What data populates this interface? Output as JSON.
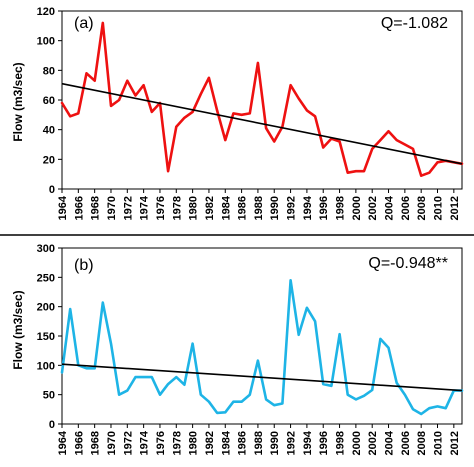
{
  "chart_data": [
    {
      "type": "line",
      "panel_label": "(a)",
      "annotation": "Q=-1.082",
      "ylabel": "Flow (m3/sec)",
      "xlabel": "",
      "ylim": [
        0,
        120
      ],
      "yticks": [
        0,
        20,
        40,
        60,
        80,
        100,
        120
      ],
      "xlim": [
        1964,
        2013
      ],
      "xticks": [
        1964,
        1966,
        1968,
        1970,
        1972,
        1974,
        1976,
        1978,
        1980,
        1982,
        1984,
        1986,
        1988,
        1990,
        1992,
        1994,
        1996,
        1998,
        2000,
        2002,
        2004,
        2006,
        2008,
        2010,
        2012
      ],
      "grid": false,
      "series": [
        {
          "color": "#ee1111",
          "x": [
            1964,
            1965,
            1966,
            1967,
            1968,
            1969,
            1970,
            1971,
            1972,
            1973,
            1974,
            1975,
            1976,
            1977,
            1978,
            1979,
            1980,
            1981,
            1982,
            1983,
            1984,
            1985,
            1986,
            1987,
            1988,
            1989,
            1990,
            1991,
            1992,
            1993,
            1994,
            1995,
            1996,
            1997,
            1998,
            1999,
            2000,
            2001,
            2002,
            2003,
            2004,
            2005,
            2006,
            2007,
            2008,
            2009,
            2010,
            2011,
            2012,
            2013
          ],
          "y": [
            58,
            49,
            51,
            78,
            73,
            112,
            56,
            60,
            73,
            63,
            70,
            52,
            58,
            12,
            42,
            48,
            52,
            64,
            75,
            53,
            33,
            51,
            50,
            51,
            85,
            41,
            32,
            42,
            70,
            61,
            53,
            49,
            28,
            34,
            32,
            11,
            12,
            12,
            27,
            33,
            39,
            33,
            30,
            27,
            9,
            11,
            18,
            19,
            18,
            17
          ]
        }
      ],
      "trendline": {
        "color": "#000000",
        "x": [
          1964,
          2013
        ],
        "y": [
          71,
          17
        ]
      }
    },
    {
      "type": "line",
      "panel_label": "(b)",
      "annotation": "Q=-0.948**",
      "ylabel": "Flow (m3/sec)",
      "xlabel": "",
      "ylim": [
        0,
        300
      ],
      "yticks": [
        0,
        50,
        100,
        150,
        200,
        250,
        300
      ],
      "xlim": [
        1964,
        2013
      ],
      "xticks": [
        1964,
        1966,
        1968,
        1970,
        1972,
        1974,
        1976,
        1978,
        1980,
        1982,
        1984,
        1986,
        1988,
        1990,
        1992,
        1994,
        1996,
        1998,
        2000,
        2002,
        2004,
        2006,
        2008,
        2010,
        2012
      ],
      "grid": false,
      "series": [
        {
          "color": "#1eb4e6",
          "x": [
            1964,
            1965,
            1966,
            1967,
            1968,
            1969,
            1970,
            1971,
            1972,
            1973,
            1974,
            1975,
            1976,
            1977,
            1978,
            1979,
            1980,
            1981,
            1982,
            1983,
            1984,
            1985,
            1986,
            1987,
            1988,
            1989,
            1990,
            1991,
            1992,
            1993,
            1994,
            1995,
            1996,
            1997,
            1998,
            1999,
            2000,
            2001,
            2002,
            2003,
            2004,
            2005,
            2006,
            2007,
            2008,
            2009,
            2010,
            2011,
            2012,
            2013
          ],
          "y": [
            88,
            196,
            100,
            95,
            95,
            207,
            137,
            50,
            57,
            80,
            80,
            80,
            50,
            68,
            80,
            67,
            137,
            50,
            38,
            19,
            20,
            38,
            38,
            50,
            108,
            42,
            32,
            35,
            245,
            152,
            198,
            175,
            68,
            65,
            153,
            50,
            42,
            48,
            58,
            145,
            130,
            70,
            50,
            25,
            17,
            27,
            30,
            27,
            57,
            57
          ]
        }
      ],
      "trendline": {
        "color": "#000000",
        "x": [
          1964,
          2013
        ],
        "y": [
          102,
          57
        ]
      }
    }
  ]
}
